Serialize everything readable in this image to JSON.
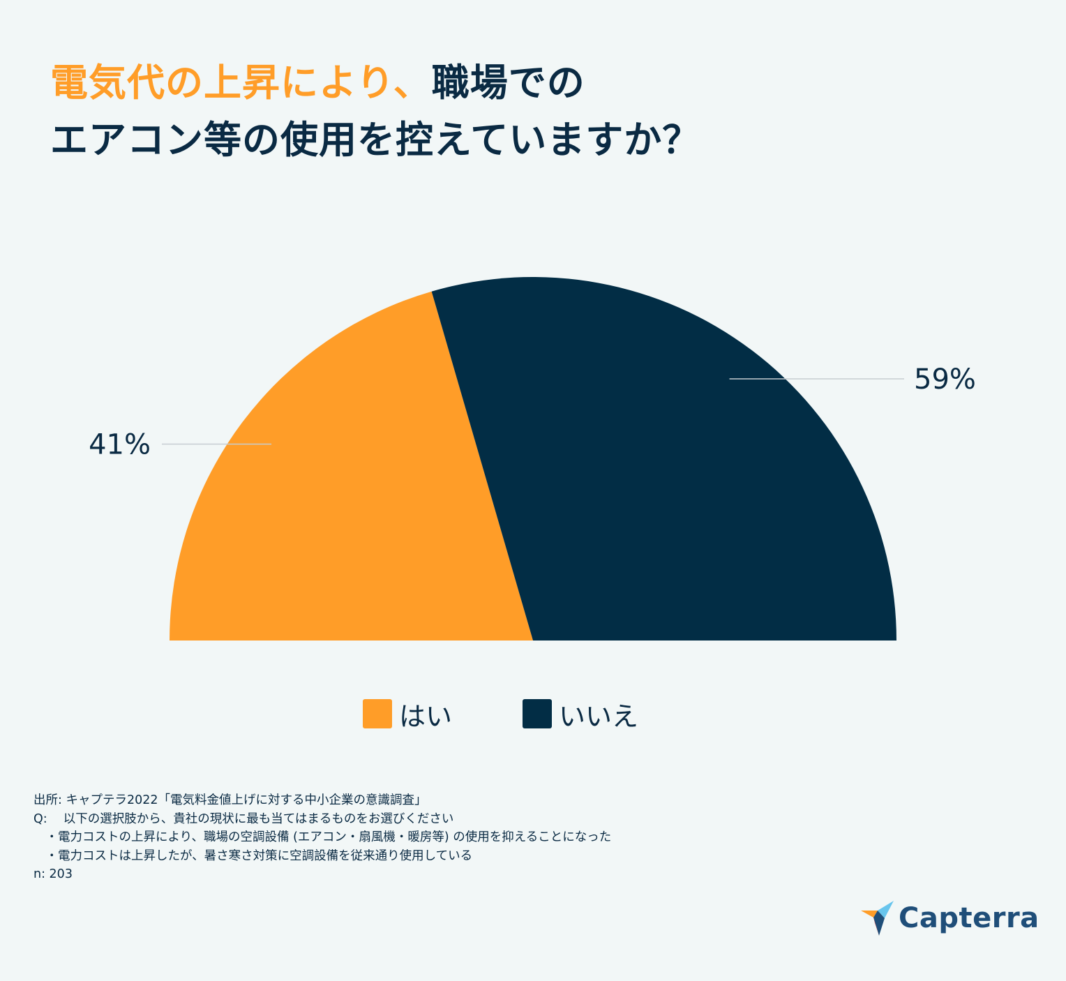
{
  "title": {
    "line1_highlight": "電気代の上昇により、",
    "line1_rest": "職場での",
    "line2": "エアコン等の使用を控えていますか？"
  },
  "colors": {
    "background": "#f2f7f7",
    "yes": "#ff9d28",
    "no": "#022d45",
    "text": "#0a2a43",
    "leader_line": "#c6cdd1"
  },
  "chart_data": {
    "type": "pie",
    "subtype": "half-donut (semicircle)",
    "title": "電気代の上昇により、職場でのエアコン等の使用を控えていますか？",
    "categories": [
      "はい",
      "いいえ"
    ],
    "values": [
      41,
      59
    ],
    "labels": [
      "41%",
      "59%"
    ],
    "unit": "%",
    "legend_position": "bottom-center"
  },
  "legend": {
    "yes_label": "はい",
    "no_label": "いいえ"
  },
  "footnote": {
    "source": "出所: キャプテラ2022「電気料金値上げに対する中小企業の意識調査」",
    "question": "Q:　 以下の選択肢から、貴社の現状に最も当てはまるものをお選びください",
    "option1": "　・電力コストの上昇により、職場の空調設備 (エアコン・扇風機・暖房等) の使用を抑えることになった",
    "option2": "　・電力コストは上昇したが、暑さ寒さ対策に空調設備を従来通り使用している",
    "sample": "n: 203"
  },
  "logo": {
    "text": "Capterra",
    "icon": "capterra-arrow-icon"
  }
}
